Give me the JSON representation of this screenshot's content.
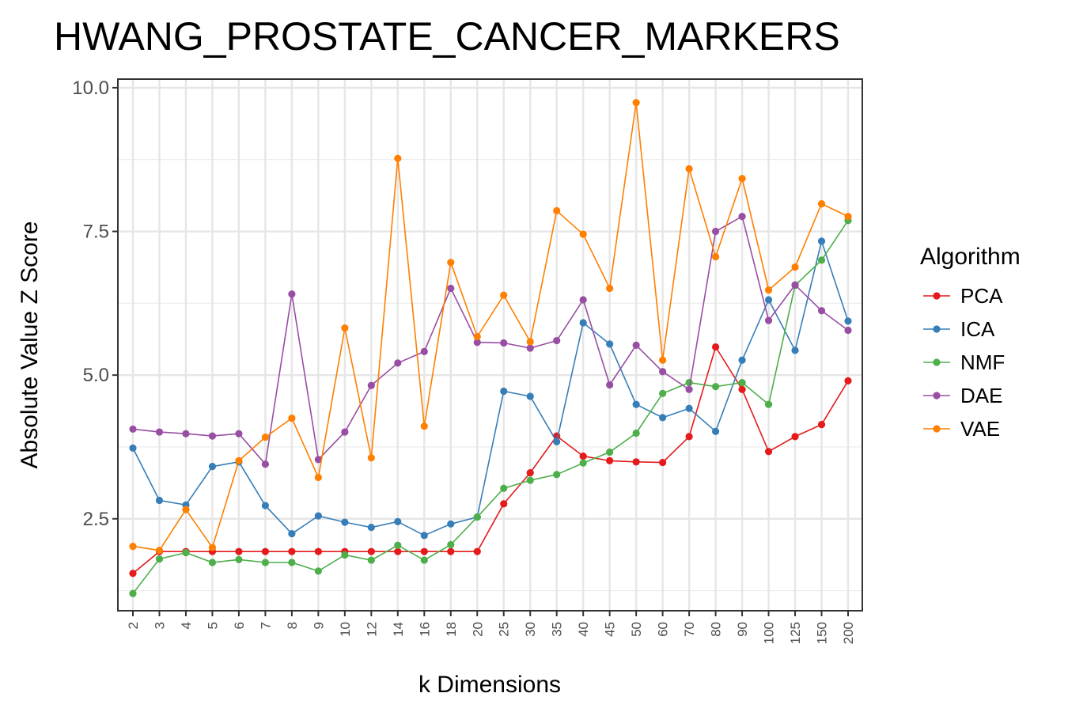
{
  "chart_data": {
    "type": "line",
    "title": "HWANG_PROSTATE_CANCER_MARKERS",
    "xlabel": "k Dimensions",
    "ylabel": "Absolute Value Z Score",
    "categories": [
      "2",
      "3",
      "4",
      "5",
      "6",
      "7",
      "8",
      "9",
      "10",
      "12",
      "14",
      "16",
      "18",
      "20",
      "25",
      "30",
      "35",
      "40",
      "45",
      "50",
      "60",
      "70",
      "80",
      "90",
      "100",
      "125",
      "150",
      "200"
    ],
    "y_ticks": [
      "2.5",
      "5.0",
      "7.5",
      "10.0"
    ],
    "ylim": [
      0.9,
      10.15
    ],
    "grid": true,
    "legend_title": "Algorithm",
    "legend_position": "right",
    "series": [
      {
        "name": "PCA",
        "color": "#e41a1c",
        "values": [
          1.55,
          1.93,
          1.93,
          1.93,
          1.93,
          1.93,
          1.93,
          1.93,
          1.93,
          1.93,
          1.93,
          1.93,
          1.93,
          1.93,
          2.76,
          3.3,
          3.94,
          3.59,
          3.51,
          3.49,
          3.48,
          3.93,
          5.49,
          4.75,
          3.67,
          3.93,
          4.14,
          4.9
        ]
      },
      {
        "name": "ICA",
        "color": "#377eb8",
        "values": [
          3.73,
          2.82,
          2.74,
          3.41,
          3.49,
          2.73,
          2.24,
          2.55,
          2.44,
          2.35,
          2.45,
          2.21,
          2.41,
          2.53,
          4.72,
          4.63,
          3.84,
          5.91,
          5.54,
          4.49,
          4.26,
          4.42,
          4.02,
          5.26,
          6.31,
          5.43,
          7.33,
          5.94
        ]
      },
      {
        "name": "NMF",
        "color": "#4daf4a",
        "values": [
          1.2,
          1.8,
          1.91,
          1.74,
          1.79,
          1.74,
          1.74,
          1.59,
          1.87,
          1.78,
          2.04,
          1.78,
          2.05,
          2.53,
          3.03,
          3.17,
          3.27,
          3.47,
          3.66,
          3.99,
          4.68,
          4.87,
          4.8,
          4.87,
          4.49,
          6.56,
          7.0,
          7.69
        ]
      },
      {
        "name": "DAE",
        "color": "#984ea3",
        "values": [
          4.06,
          4.01,
          3.98,
          3.94,
          3.98,
          3.45,
          6.41,
          3.53,
          4.01,
          4.82,
          5.21,
          5.41,
          6.51,
          5.57,
          5.56,
          5.47,
          5.6,
          6.31,
          4.83,
          5.52,
          5.06,
          4.75,
          7.5,
          7.76,
          5.95,
          6.57,
          6.12,
          5.78
        ]
      },
      {
        "name": "VAE",
        "color": "#ff7f00",
        "values": [
          2.02,
          1.95,
          2.66,
          2.0,
          3.51,
          3.92,
          4.25,
          3.22,
          5.82,
          3.56,
          8.77,
          4.11,
          6.96,
          5.67,
          6.39,
          5.58,
          7.86,
          7.45,
          6.51,
          9.74,
          5.26,
          8.59,
          7.06,
          8.42,
          6.48,
          6.88,
          7.98,
          7.76
        ]
      }
    ]
  }
}
